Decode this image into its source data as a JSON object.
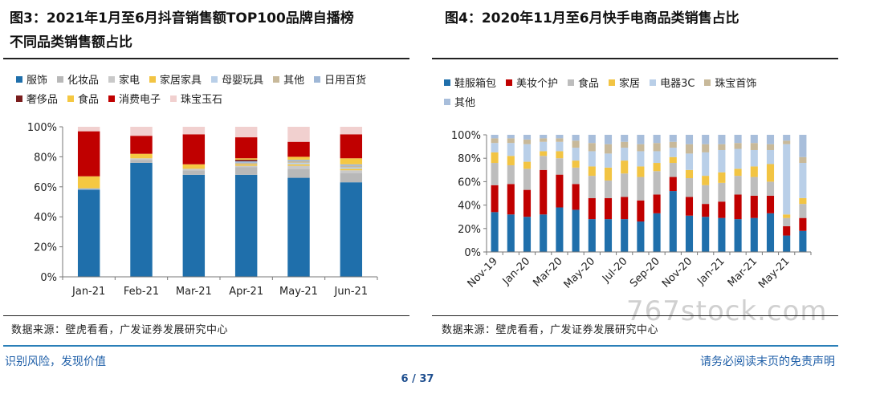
{
  "chart1": {
    "title_line1": "图3：2021年1月至6月抖音销售额TOP100品牌自播榜",
    "title_line2": "不同品类销售额占比",
    "source": "数据来源：壁虎看看，广发证券发展研究中心"
  },
  "chart2": {
    "title": "图4：2020年11月至6月快手电商品类销售占比",
    "source": "数据来源：壁虎看看，广发证券发展研究中心"
  },
  "chart_data": [
    {
      "type": "bar",
      "stacked": true,
      "title": "图3：2021年1月至6月抖音销售额TOP100品牌自播榜不同品类销售额占比",
      "categories": [
        "Jan-21",
        "Feb-21",
        "Mar-21",
        "Apr-21",
        "May-21",
        "Jun-21"
      ],
      "yticks": [
        "0%",
        "20%",
        "40%",
        "60%",
        "80%",
        "100%"
      ],
      "ylim": [
        0,
        100
      ],
      "grid": false,
      "legend_position": "top",
      "series": [
        {
          "name": "服饰",
          "color": "#1f6fab",
          "values": [
            58,
            76,
            68,
            68,
            66,
            63
          ]
        },
        {
          "name": "化妆品",
          "color": "#b8b8b8",
          "values": [
            0,
            2,
            3,
            5,
            6,
            6
          ]
        },
        {
          "name": "家电",
          "color": "#c9c9c9",
          "values": [
            0,
            1,
            1,
            1,
            2,
            2
          ]
        },
        {
          "name": "家居家具",
          "color": "#f2c443",
          "values": [
            0,
            0,
            1,
            1,
            1,
            1
          ]
        },
        {
          "name": "母婴玩具",
          "color": "#b9cfe8",
          "values": [
            0,
            0,
            0,
            0,
            1,
            1
          ]
        },
        {
          "name": "其他",
          "color": "#c8b99a",
          "values": [
            0,
            0,
            0,
            1,
            1,
            1
          ]
        },
        {
          "name": "日用百货",
          "color": "#9fb7d6",
          "values": [
            1,
            0,
            0,
            1,
            1,
            1
          ]
        },
        {
          "name": "奢侈品",
          "color": "#7a1d1d",
          "values": [
            0,
            0,
            0,
            1,
            0,
            0
          ]
        },
        {
          "name": "食品",
          "color": "#f5c842",
          "values": [
            8,
            3,
            2,
            1,
            2,
            4
          ]
        },
        {
          "name": "消费电子",
          "color": "#c00000",
          "values": [
            30,
            12,
            20,
            14,
            10,
            16
          ]
        },
        {
          "name": "珠宝玉石",
          "color": "#f1d0cf",
          "values": [
            3,
            6,
            5,
            7,
            10,
            5
          ]
        }
      ]
    },
    {
      "type": "bar",
      "stacked": true,
      "title": "图4：2020年11月至6月快手电商品类销售占比",
      "categories": [
        "Nov-19",
        "Dec-19",
        "Jan-20",
        "Feb-20",
        "Mar-20",
        "Apr-20",
        "May-20",
        "Jun-20",
        "Jul-20",
        "Aug-20",
        "Sep-20",
        "Oct-20",
        "Nov-20",
        "Dec-20",
        "Jan-21",
        "Feb-21",
        "Mar-21",
        "Apr-21",
        "May-21",
        "Jun-21"
      ],
      "xtick_labels": [
        "Nov-19",
        "Jan-20",
        "Mar-20",
        "May-20",
        "Jul-20",
        "Sep-20",
        "Nov-20",
        "Jan-21",
        "Mar-21",
        "May-21"
      ],
      "yticks": [
        "0%",
        "20%",
        "40%",
        "60%",
        "80%",
        "100%"
      ],
      "ylim": [
        0,
        100
      ],
      "grid": false,
      "legend_position": "top",
      "series": [
        {
          "name": "鞋服箱包",
          "color": "#1f6fab",
          "values": [
            34,
            32,
            30,
            32,
            38,
            36,
            28,
            28,
            28,
            26,
            33,
            52,
            31,
            30,
            29,
            28,
            29,
            33,
            14,
            18
          ]
        },
        {
          "name": "美妆个护",
          "color": "#c00000",
          "values": [
            23,
            26,
            23,
            38,
            28,
            22,
            18,
            18,
            19,
            18,
            16,
            12,
            16,
            11,
            14,
            21,
            19,
            15,
            8,
            11
          ]
        },
        {
          "name": "食品",
          "color": "#bdbdbd",
          "values": [
            19,
            16,
            18,
            12,
            14,
            14,
            19,
            15,
            20,
            20,
            20,
            12,
            16,
            16,
            16,
            16,
            16,
            12,
            7,
            12
          ]
        },
        {
          "name": "家居",
          "color": "#f2c443",
          "values": [
            9,
            8,
            6,
            4,
            6,
            6,
            8,
            11,
            11,
            9,
            7,
            5,
            7,
            8,
            9,
            6,
            9,
            15,
            3,
            5
          ]
        },
        {
          "name": "电器3C",
          "color": "#b9cfe8",
          "values": [
            8,
            11,
            15,
            8,
            8,
            11,
            13,
            12,
            11,
            13,
            10,
            8,
            14,
            20,
            19,
            17,
            14,
            12,
            60,
            30
          ]
        },
        {
          "name": "珠宝首饰",
          "color": "#c8b99a",
          "values": [
            4,
            4,
            4,
            3,
            3,
            6,
            7,
            8,
            5,
            6,
            7,
            5,
            8,
            7,
            5,
            5,
            6,
            5,
            3,
            5
          ]
        },
        {
          "name": "其他",
          "color": "#a8bedb",
          "values": [
            3,
            3,
            4,
            3,
            3,
            5,
            7,
            8,
            6,
            8,
            7,
            6,
            8,
            8,
            8,
            7,
            7,
            8,
            5,
            19
          ]
        }
      ]
    }
  ],
  "footer": {
    "left": "识别风险，发现价值",
    "right": "请务必阅读末页的免责声明",
    "page": "6 / 37"
  },
  "watermark": "767stock.com"
}
